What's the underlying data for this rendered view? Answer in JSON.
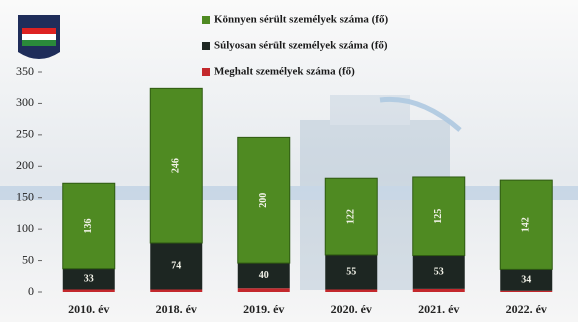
{
  "chart_data": {
    "type": "bar",
    "stacked": true,
    "categories": [
      "2010. év",
      "2018. év",
      "2019. év",
      "2020. év",
      "2021. év",
      "2022. év"
    ],
    "series": [
      {
        "name": "Könnyen sérült személyek száma (fő)",
        "color": "#4f8a22",
        "values": [
          136,
          246,
          200,
          122,
          125,
          142
        ]
      },
      {
        "name": "Súlyosan sérült személyek száma (fő)",
        "color": "#1d2622",
        "values": [
          33,
          74,
          40,
          55,
          53,
          34
        ]
      },
      {
        "name": "Meghalt személyek száma (fő)",
        "color": "#c3282c",
        "values": [
          4,
          4,
          6,
          4,
          5,
          2
        ]
      }
    ],
    "ylim": [
      0,
      350
    ],
    "yticks": [
      0,
      50,
      100,
      150,
      200,
      250,
      300,
      350
    ]
  }
}
